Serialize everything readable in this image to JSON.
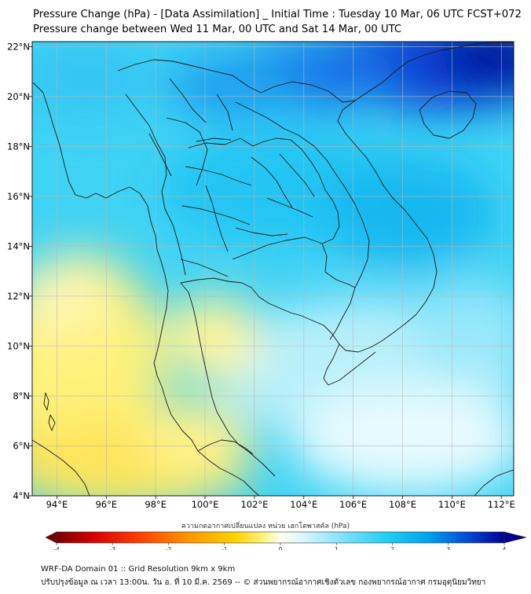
{
  "title_line1": "Pressure Change (hPa) - [Data Assimilation] _ Initial Time : Tuesday 10 Mar, 06 UTC FCST+072",
  "title_line2": "Pressure change between Wed 11 Mar, 00 UTC and Sat 14 Mar, 00 UTC",
  "map": {
    "lon_range": [
      93,
      112.5
    ],
    "lat_range": [
      4,
      22.2
    ],
    "lon_ticks": [
      "94°E",
      "96°E",
      "98°E",
      "100°E",
      "102°E",
      "104°E",
      "106°E",
      "108°E",
      "110°E",
      "112°E"
    ],
    "lat_ticks": [
      "22°N",
      "20°N",
      "18°N",
      "16°N",
      "14°N",
      "12°N",
      "10°N",
      "8°N",
      "6°N",
      "4°N"
    ],
    "gridlines": true
  },
  "colorbar": {
    "label": "ความกดอากาศเปลี่ยนแปลง หน่วย เฮกโตพาสคัล (hPa)",
    "range": [
      -4,
      4
    ],
    "ticks": [
      "-4",
      "-3",
      "-2",
      "-1",
      "0",
      "1",
      "2",
      "3",
      "4"
    ],
    "extend": "both",
    "colors": [
      "#7a0000",
      "#d40000",
      "#ff3a00",
      "#ff9a00",
      "#ffd400",
      "#fff37a",
      "#ffffd8",
      "#e6fbff",
      "#9ae8fb",
      "#28d2f4",
      "#00a6f0",
      "#0050d8",
      "#00008f"
    ]
  },
  "footer_line1": "WRF-DA Domain 01 :: Grid Resolution 9km x 9km",
  "footer_line2": "ปรับปรุงข้อมูล ณ เวลา 13:00น. วัน อ. ที่ 10 มี.ค. 2569 -- © ส่วนพยากรณ์อากาศเชิงตัวเลข กองพยากรณ์อากาศ กรมอุตุนิยมวิทยา"
}
